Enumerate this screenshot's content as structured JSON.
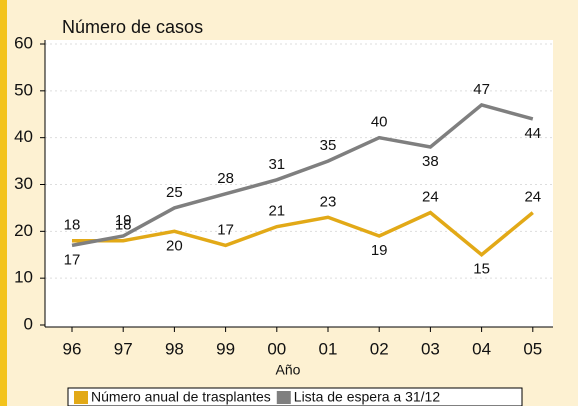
{
  "chart_data": {
    "type": "line",
    "y_label": "Número de casos",
    "x_label": "Año",
    "categories": [
      "96",
      "97",
      "98",
      "99",
      "00",
      "01",
      "02",
      "03",
      "04",
      "05"
    ],
    "series": [
      {
        "name": "Número anual de trasplantes",
        "color": "#e2a917",
        "values": [
          18,
          18,
          20,
          17,
          21,
          23,
          19,
          24,
          15,
          24
        ]
      },
      {
        "name": "Lista de espera a 31/12",
        "color": "#7f7f7f",
        "values": [
          17,
          19,
          25,
          28,
          31,
          35,
          40,
          38,
          47,
          44
        ]
      }
    ],
    "ylim": [
      0,
      60
    ],
    "yticks": [
      0,
      10,
      20,
      30,
      40,
      50,
      60
    ],
    "grid": true,
    "legend": "bottom"
  }
}
